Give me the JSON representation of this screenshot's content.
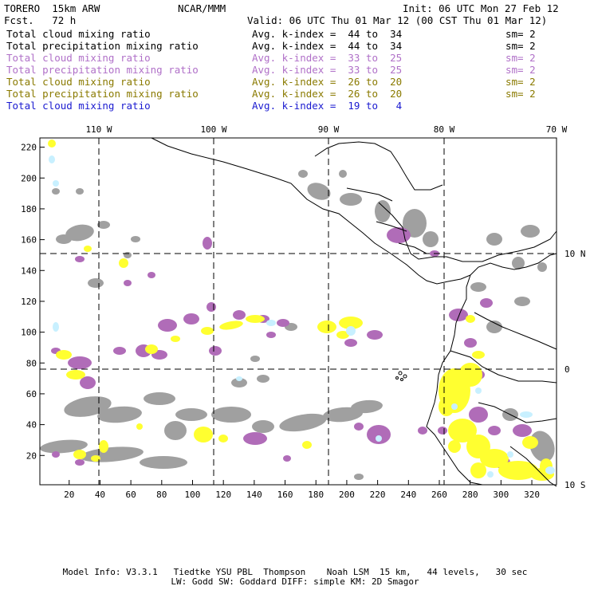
{
  "header": {
    "model": "TORERO  15km ARW",
    "org": "NCAR/MMM",
    "init": "Init: 06 UTC Mon 27 Feb 12",
    "fcst": "Fcst.   72 h",
    "valid": "Valid: 06 UTC Thu 01 Mar 12 (00 CST Thu 01 Mar 12)"
  },
  "legend": [
    {
      "field": "Total cloud mixing ratio",
      "index": "Avg. k-index =  44 to  34",
      "sm": "sm= 2",
      "color": "#000000"
    },
    {
      "field": "Total precipitation mixing ratio",
      "index": "Avg. k-index =  44 to  34",
      "sm": "sm= 2",
      "color": "#000000"
    },
    {
      "field": "Total cloud mixing ratio",
      "index": "Avg. k-index =  33 to  25",
      "sm": "sm= 2",
      "color": "#b070c8"
    },
    {
      "field": "Total precipitation mixing ratio",
      "index": "Avg. k-index =  33 to  25",
      "sm": "sm= 2",
      "color": "#b070c8"
    },
    {
      "field": "Total cloud mixing ratio",
      "index": "Avg. k-index =  26 to  20",
      "sm": "sm= 2",
      "color": "#8a7a00"
    },
    {
      "field": "Total precipitation mixing ratio",
      "index": "Avg. k-index =  26 to  20",
      "sm": "sm= 2",
      "color": "#8a7a00"
    },
    {
      "field": "Total cloud mixing ratio",
      "index": "Avg. k-index =  19 to   4",
      "sm": "",
      "color": "#1a1ad0"
    }
  ],
  "map": {
    "lon_labels": [
      "110 W",
      "100 W",
      "90 W",
      "80 W",
      "70 W"
    ],
    "lat_labels": [
      "10 N",
      "0",
      "10 S"
    ],
    "y_ticks": [
      "220",
      "200",
      "180",
      "160",
      "140",
      "120",
      "100",
      "80",
      "60",
      "40",
      "20"
    ],
    "x_ticks": [
      "20",
      "40",
      "60",
      "80",
      "100",
      "120",
      "140",
      "160",
      "180",
      "200",
      "220",
      "240",
      "260",
      "280",
      "300",
      "320"
    ],
    "colors": {
      "gray": "#a0a0a0",
      "purple": "#b06cb8",
      "yellow": "#ffff30",
      "cyan": "#c8f0ff"
    }
  },
  "footer": {
    "line1": "Model Info: V3.3.1   Tiedtke YSU PBL  Thompson    Noah LSM  15 km,   44 levels,   30 sec",
    "line2": "LW: Godd SW: Goddard DIFF: simple KM: 2D Smagor"
  }
}
